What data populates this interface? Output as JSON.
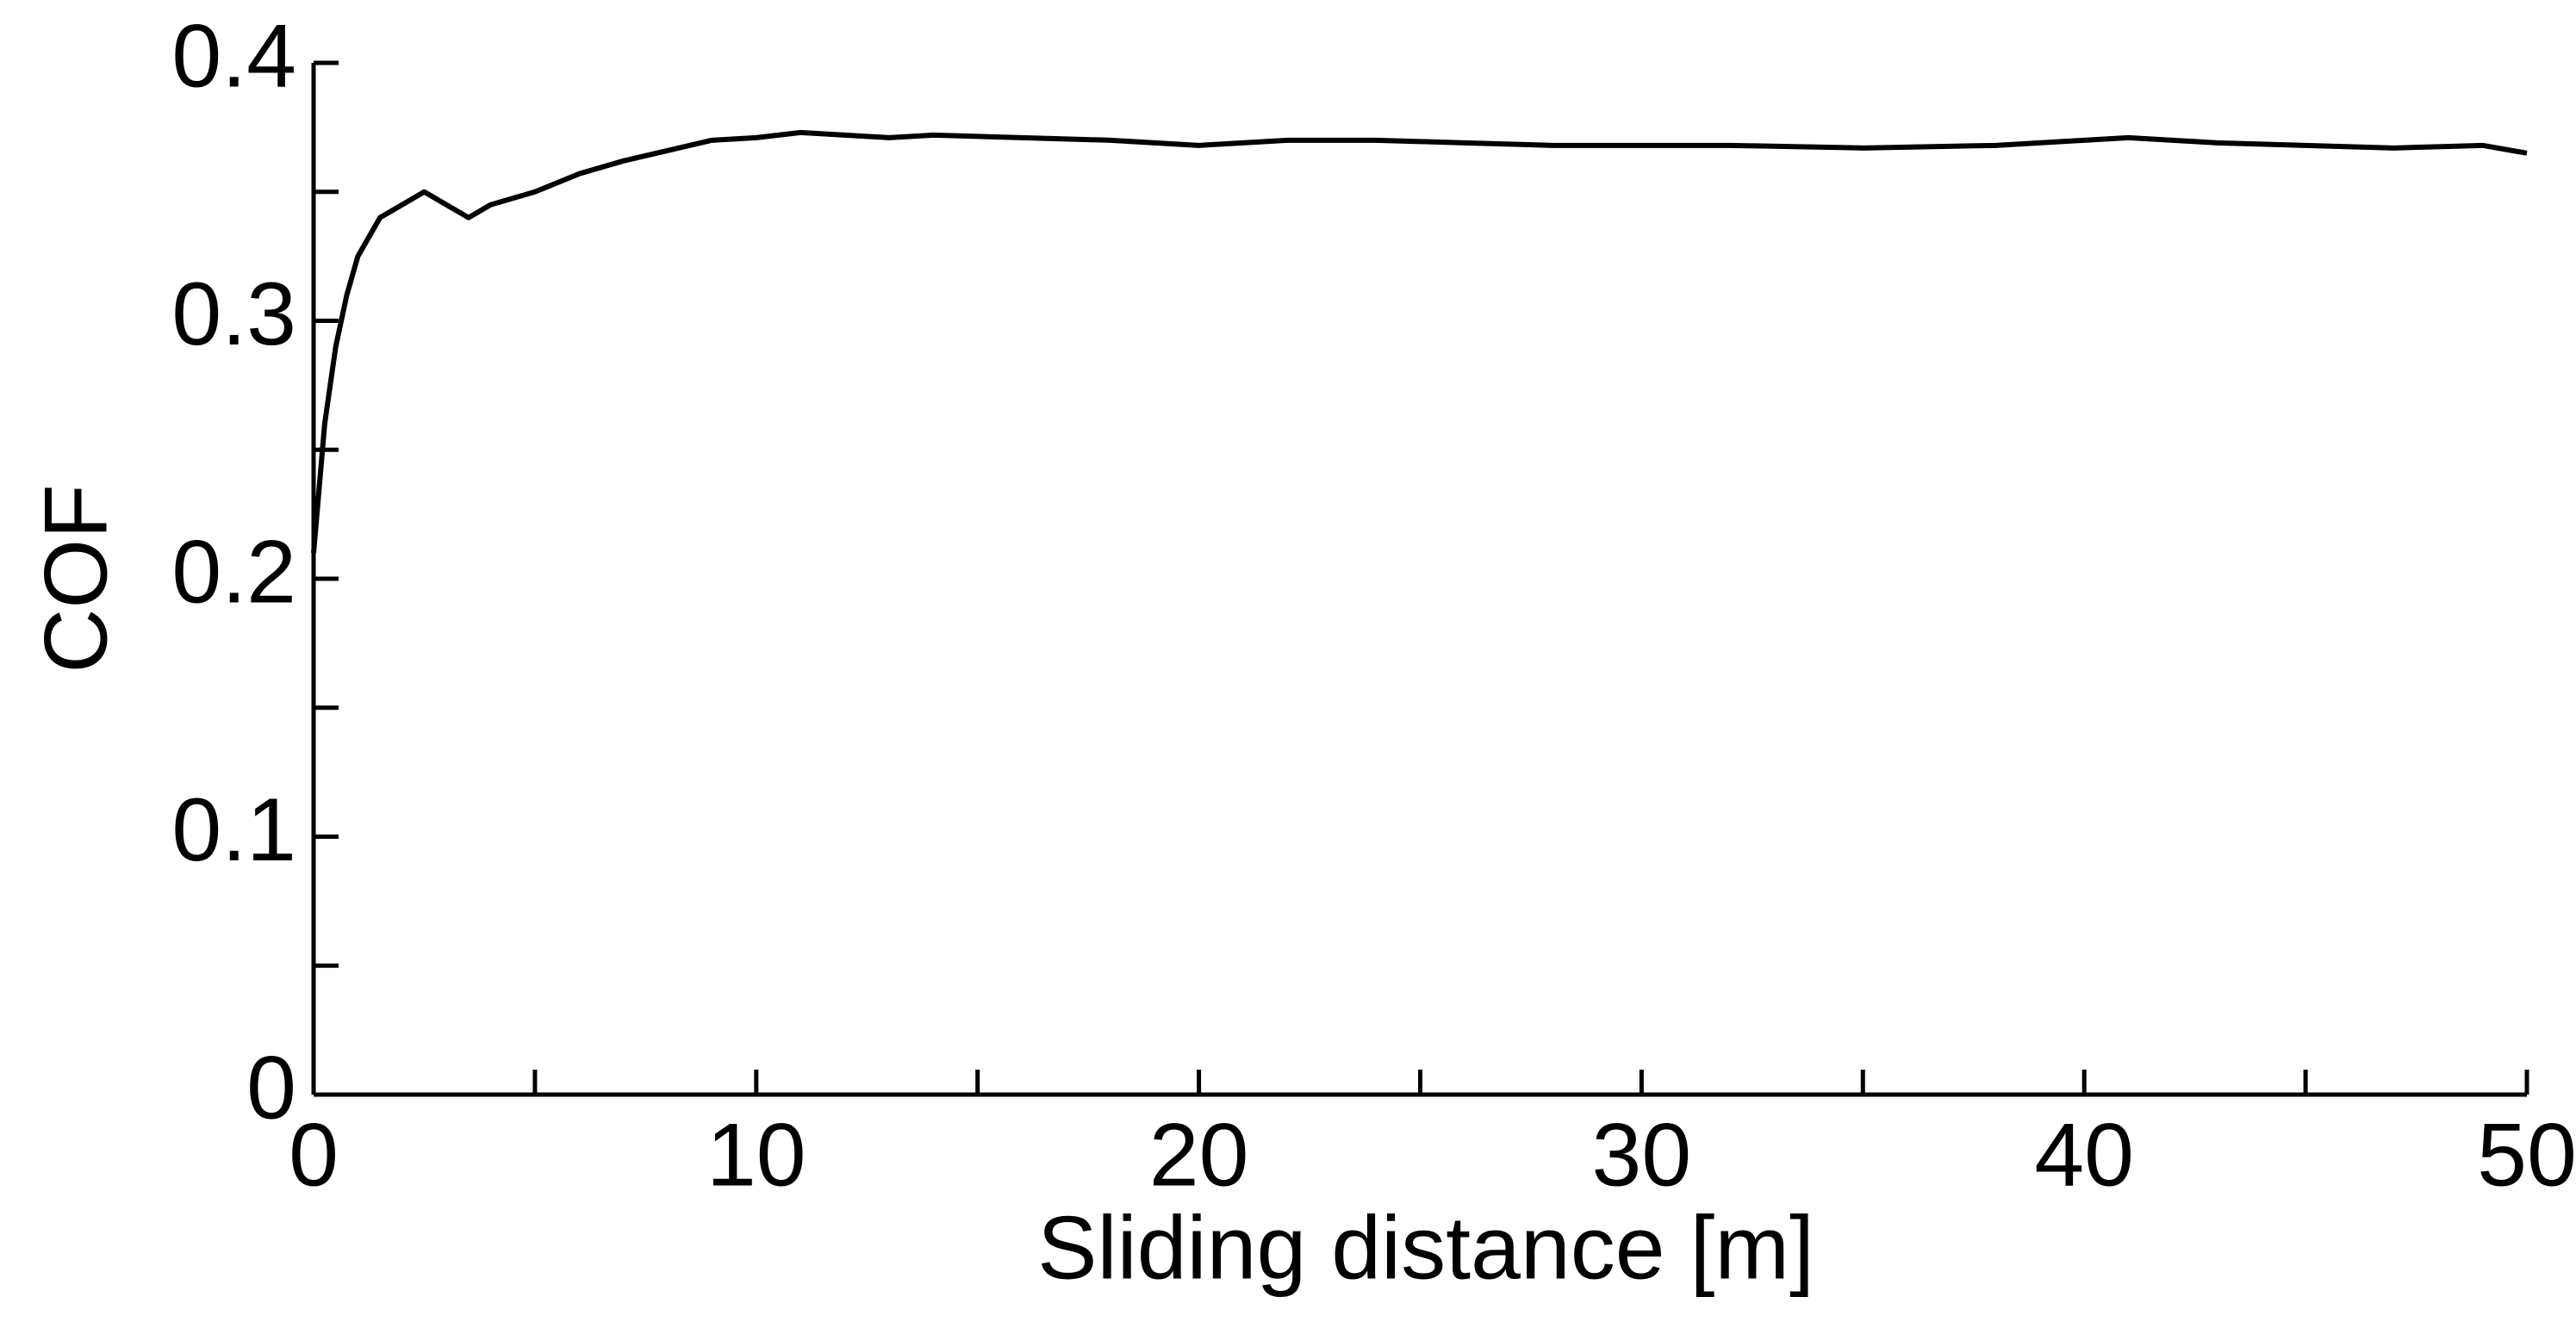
{
  "chart_data": {
    "type": "line",
    "x_label": "Sliding distance [m]",
    "y_label": "COF",
    "x": [
      0,
      0.25,
      0.5,
      0.75,
      1,
      1.5,
      2,
      2.5,
      3,
      3.5,
      4,
      5,
      6,
      7,
      8,
      9,
      10,
      11,
      12,
      13,
      14,
      16,
      18,
      20,
      22,
      24,
      26,
      28,
      30,
      32,
      35,
      38,
      40,
      41,
      43,
      45,
      47,
      49,
      50
    ],
    "series": [
      {
        "name": "COF",
        "color": "#000000",
        "values": [
          0.21,
          0.26,
          0.29,
          0.31,
          0.325,
          0.34,
          0.345,
          0.35,
          0.345,
          0.34,
          0.345,
          0.35,
          0.357,
          0.362,
          0.366,
          0.37,
          0.371,
          0.373,
          0.372,
          0.371,
          0.372,
          0.371,
          0.37,
          0.368,
          0.37,
          0.37,
          0.369,
          0.368,
          0.368,
          0.368,
          0.367,
          0.368,
          0.37,
          0.371,
          0.369,
          0.368,
          0.367,
          0.368,
          0.365
        ]
      }
    ],
    "xlim": [
      0,
      50
    ],
    "xticks": [
      0,
      10,
      20,
      30,
      40,
      50
    ],
    "xminorticks": [
      5,
      15,
      25,
      35,
      45
    ],
    "ylim": [
      0,
      0.4
    ],
    "yticks": [
      0,
      0.1,
      0.2,
      0.3,
      0.4
    ],
    "yminorticks": [
      0.05,
      0.15,
      0.25,
      0.35
    ],
    "grid": false
  }
}
